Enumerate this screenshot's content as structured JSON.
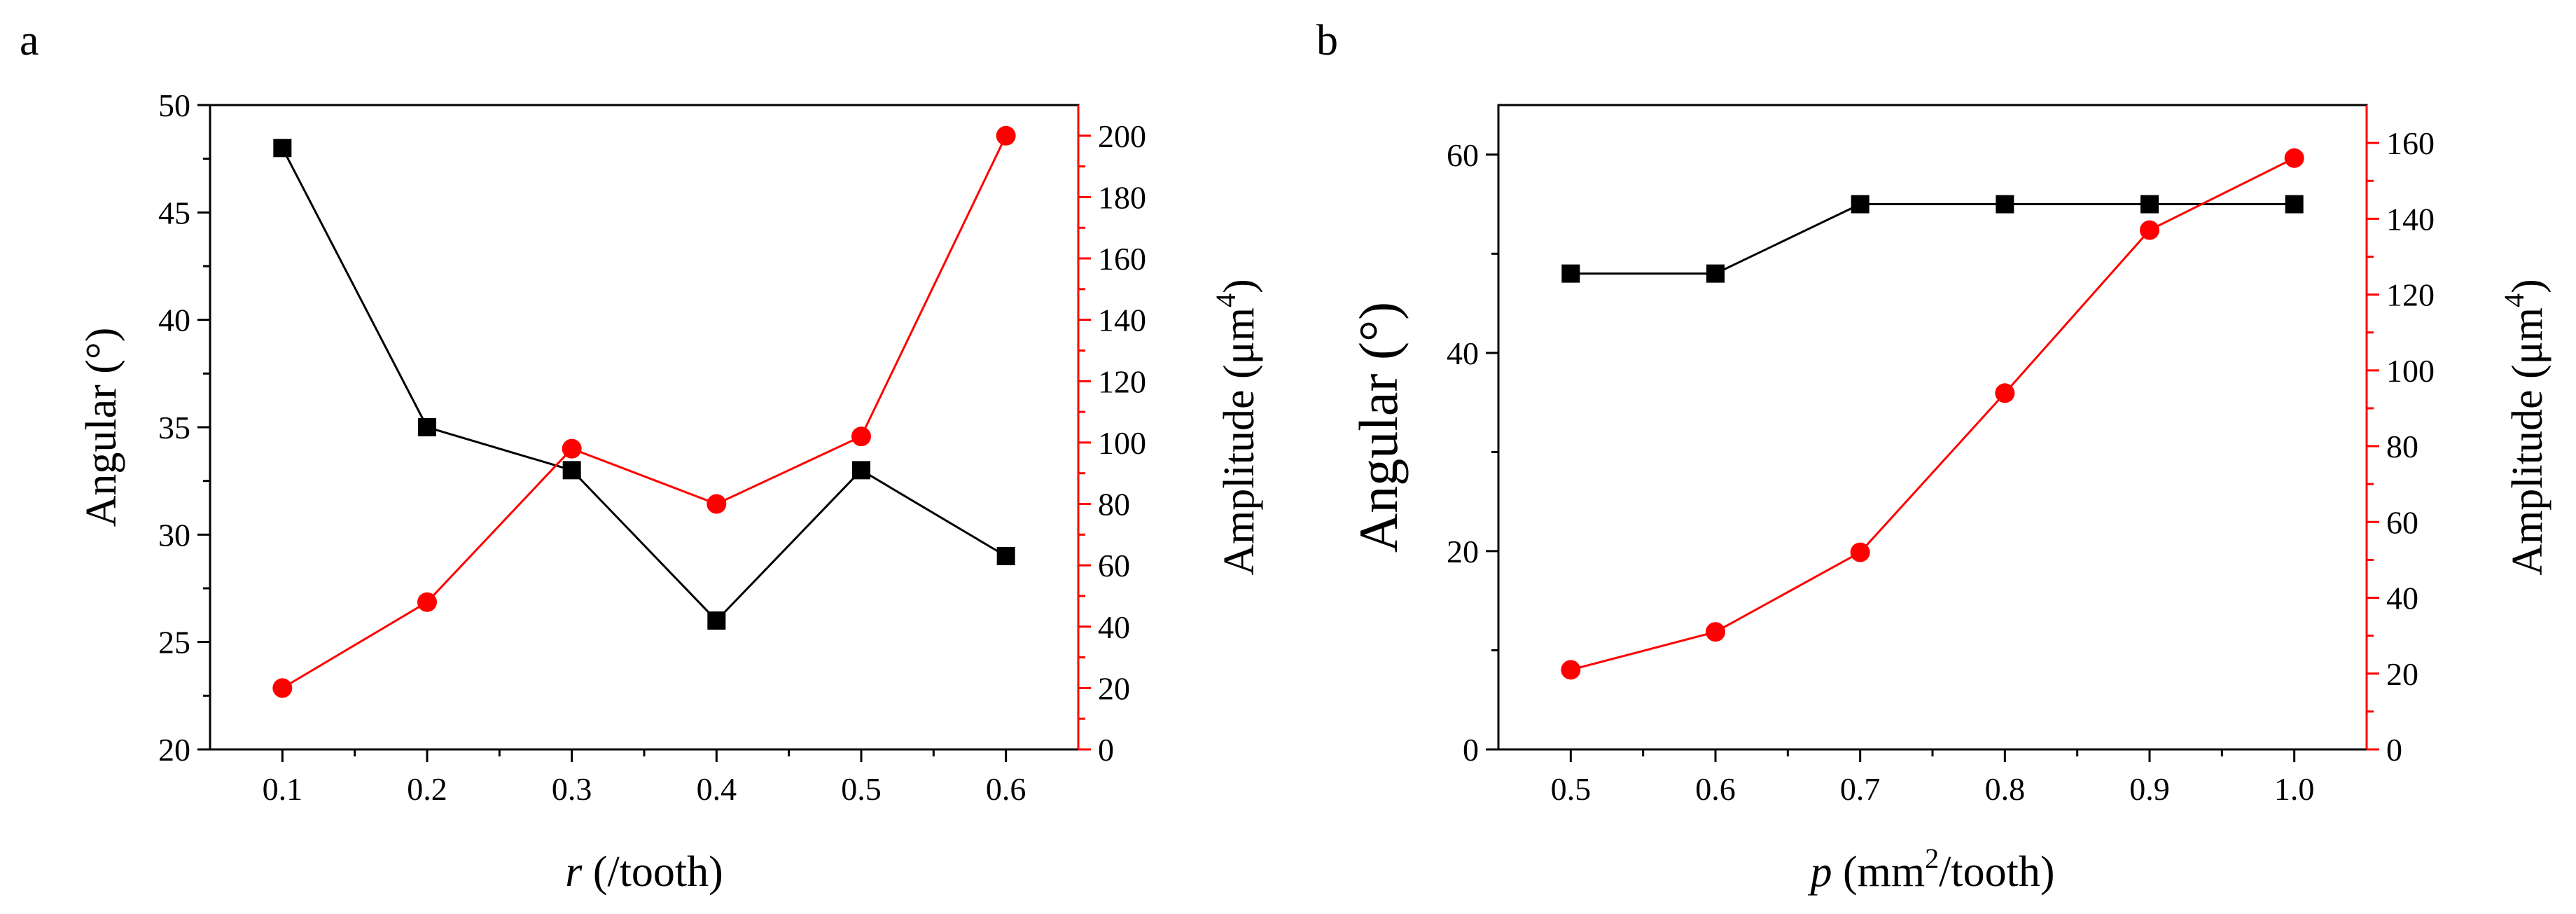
{
  "panels": [
    {
      "label": "a",
      "xlabel_var": "r",
      "xlabel_rest": " (/tooth)",
      "ylabel_left": "Angular (°)",
      "ylabel_right": "Amplitude (μm",
      "ylabel_right_sup": "4",
      "ylabel_right_end": ")"
    },
    {
      "label": "b",
      "xlabel_var": "p",
      "xlabel_rest_a": " (mm",
      "xlabel_rest_sup": "2",
      "xlabel_rest_b": "/tooth)",
      "ylabel_left": "Angular (°)",
      "ylabel_right": "Amplitude (μm",
      "ylabel_right_sup": "4",
      "ylabel_right_end": ")"
    }
  ],
  "colors": {
    "angular": "#000000",
    "amplitude": "#ff0000",
    "axis": "#000000"
  },
  "chart_data": [
    {
      "type": "line",
      "panel": "a",
      "x": [
        0.1,
        0.2,
        0.3,
        0.4,
        0.5,
        0.6
      ],
      "xticks": [
        "0.1",
        "0.2",
        "0.3",
        "0.4",
        "0.5",
        "0.6"
      ],
      "xlim": [
        0.05,
        0.65
      ],
      "xlabel": "r (/tooth)",
      "series": [
        {
          "name": "Angular",
          "axis": "left",
          "marker": "square",
          "color": "#000000",
          "values": [
            48,
            35,
            33,
            26,
            33,
            29
          ]
        },
        {
          "name": "Amplitude",
          "axis": "right",
          "marker": "circle",
          "color": "#ff0000",
          "values": [
            20,
            48,
            98,
            80,
            102,
            200
          ]
        }
      ],
      "ylim_left": [
        20,
        50
      ],
      "yticks_left": [
        "20",
        "25",
        "30",
        "35",
        "40",
        "45",
        "50"
      ],
      "ylabel_left": "Angular (°)",
      "ylim_right": [
        0,
        210
      ],
      "yticks_right": [
        "0",
        "20",
        "40",
        "60",
        "80",
        "100",
        "120",
        "140",
        "160",
        "180",
        "200"
      ],
      "ylabel_right": "Amplitude (μm4)"
    },
    {
      "type": "line",
      "panel": "b",
      "x": [
        0.5,
        0.6,
        0.7,
        0.8,
        0.9,
        1.0
      ],
      "xticks": [
        "0.5",
        "0.6",
        "0.7",
        "0.8",
        "0.9",
        "1.0"
      ],
      "xlim": [
        0.45,
        1.05
      ],
      "xlabel": "p (mm2/tooth)",
      "series": [
        {
          "name": "Angular",
          "axis": "left",
          "marker": "square",
          "color": "#000000",
          "values": [
            48,
            48,
            55,
            55,
            55,
            55
          ]
        },
        {
          "name": "Amplitude",
          "axis": "right",
          "marker": "circle",
          "color": "#ff0000",
          "values": [
            21,
            31,
            52,
            94,
            137,
            156
          ]
        }
      ],
      "ylim_left": [
        0,
        65
      ],
      "yticks_left": [
        "0",
        "20",
        "40",
        "60"
      ],
      "ylabel_left": "Angular (°)",
      "ylim_right": [
        0,
        170
      ],
      "yticks_right": [
        "0",
        "20",
        "40",
        "60",
        "80",
        "100",
        "120",
        "140",
        "160"
      ],
      "ylabel_right": "Amplitude (μm4)"
    }
  ]
}
